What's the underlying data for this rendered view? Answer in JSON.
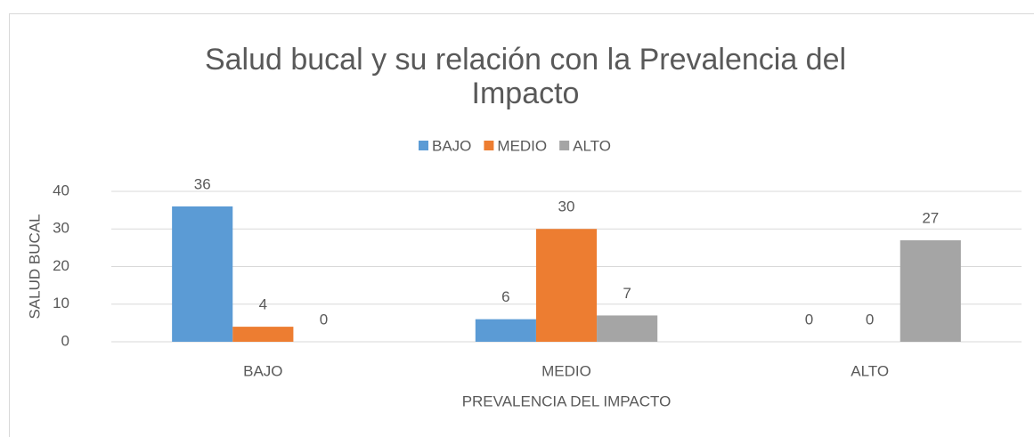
{
  "chart_data": {
    "type": "bar",
    "title": "Salud bucal y su relación con la Prevalencia del Impacto",
    "x_label": "PREVALENCIA DEL IMPACTO",
    "y_label": "SALUD BUCAL",
    "categories": [
      "BAJO",
      "MEDIO",
      "ALTO"
    ],
    "series": [
      {
        "name": "BAJO",
        "color": "#5b9bd5",
        "values": [
          36,
          6,
          0
        ]
      },
      {
        "name": "MEDIO",
        "color": "#ed7d31",
        "values": [
          4,
          30,
          0
        ]
      },
      {
        "name": "ALTO",
        "color": "#a5a5a5",
        "values": [
          0,
          7,
          27
        ]
      }
    ],
    "ylim": [
      0,
      40
    ],
    "yticks": [
      0,
      10,
      20,
      30,
      40
    ],
    "grid": true,
    "legend": "top"
  }
}
